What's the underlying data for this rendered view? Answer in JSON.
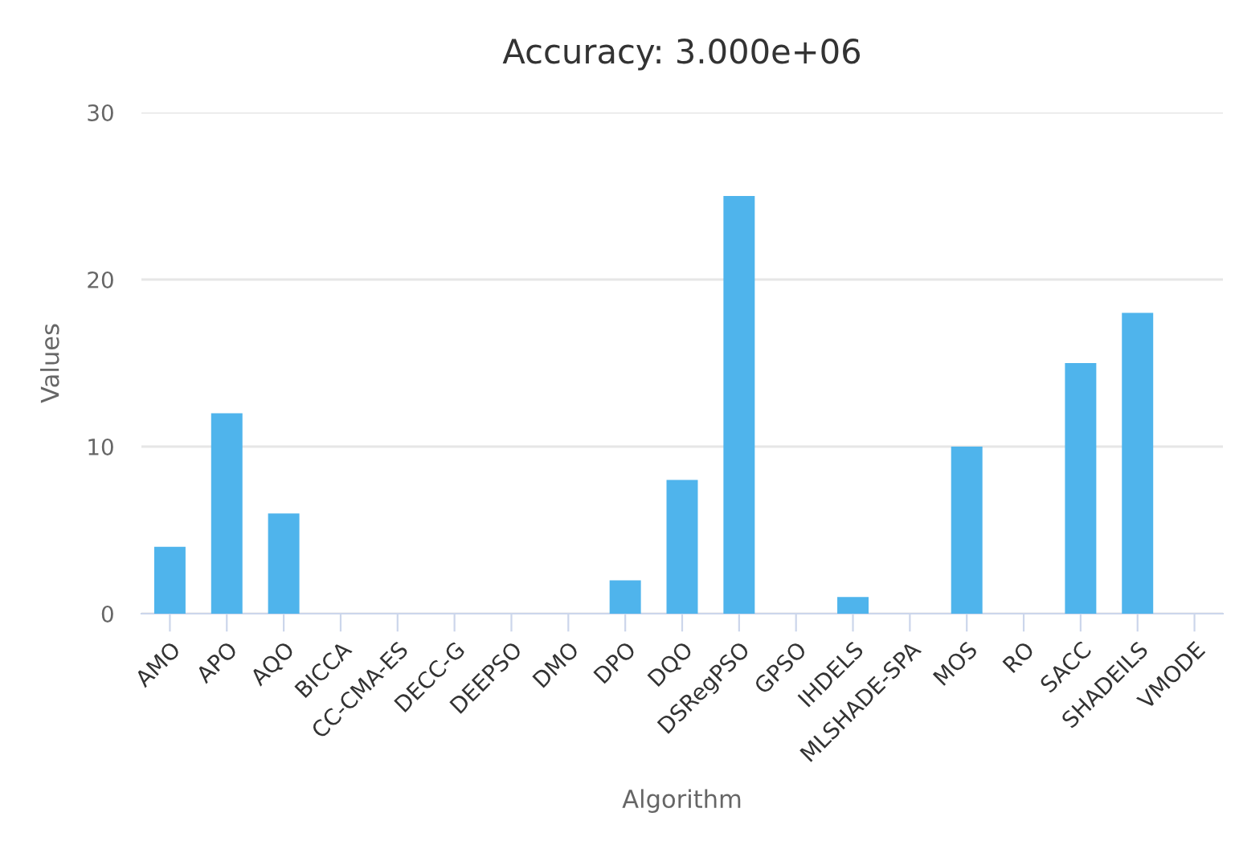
{
  "chart_data": {
    "type": "bar",
    "title": "Accuracy: 3.000e+06",
    "xlabel": "Algorithm",
    "ylabel": "Values",
    "categories": [
      "AMO",
      "APO",
      "AQO",
      "BICCA",
      "CC-CMA-ES",
      "DECC-G",
      "DEEPSO",
      "DMO",
      "DPO",
      "DQO",
      "DSRegPSO",
      "GPSO",
      "IHDELS",
      "MLSHADE-SPA",
      "MOS",
      "RO",
      "SACC",
      "SHADEILS",
      "VMODE"
    ],
    "values": [
      4,
      12,
      6,
      0,
      0,
      0,
      0,
      0,
      2,
      8,
      25,
      0,
      1,
      0,
      10,
      0,
      15,
      18,
      0
    ],
    "color": "#4fb4ec",
    "ylim": [
      0,
      30
    ],
    "yticks": [
      0,
      10,
      20,
      30
    ],
    "grid": "y",
    "legend": false
  }
}
